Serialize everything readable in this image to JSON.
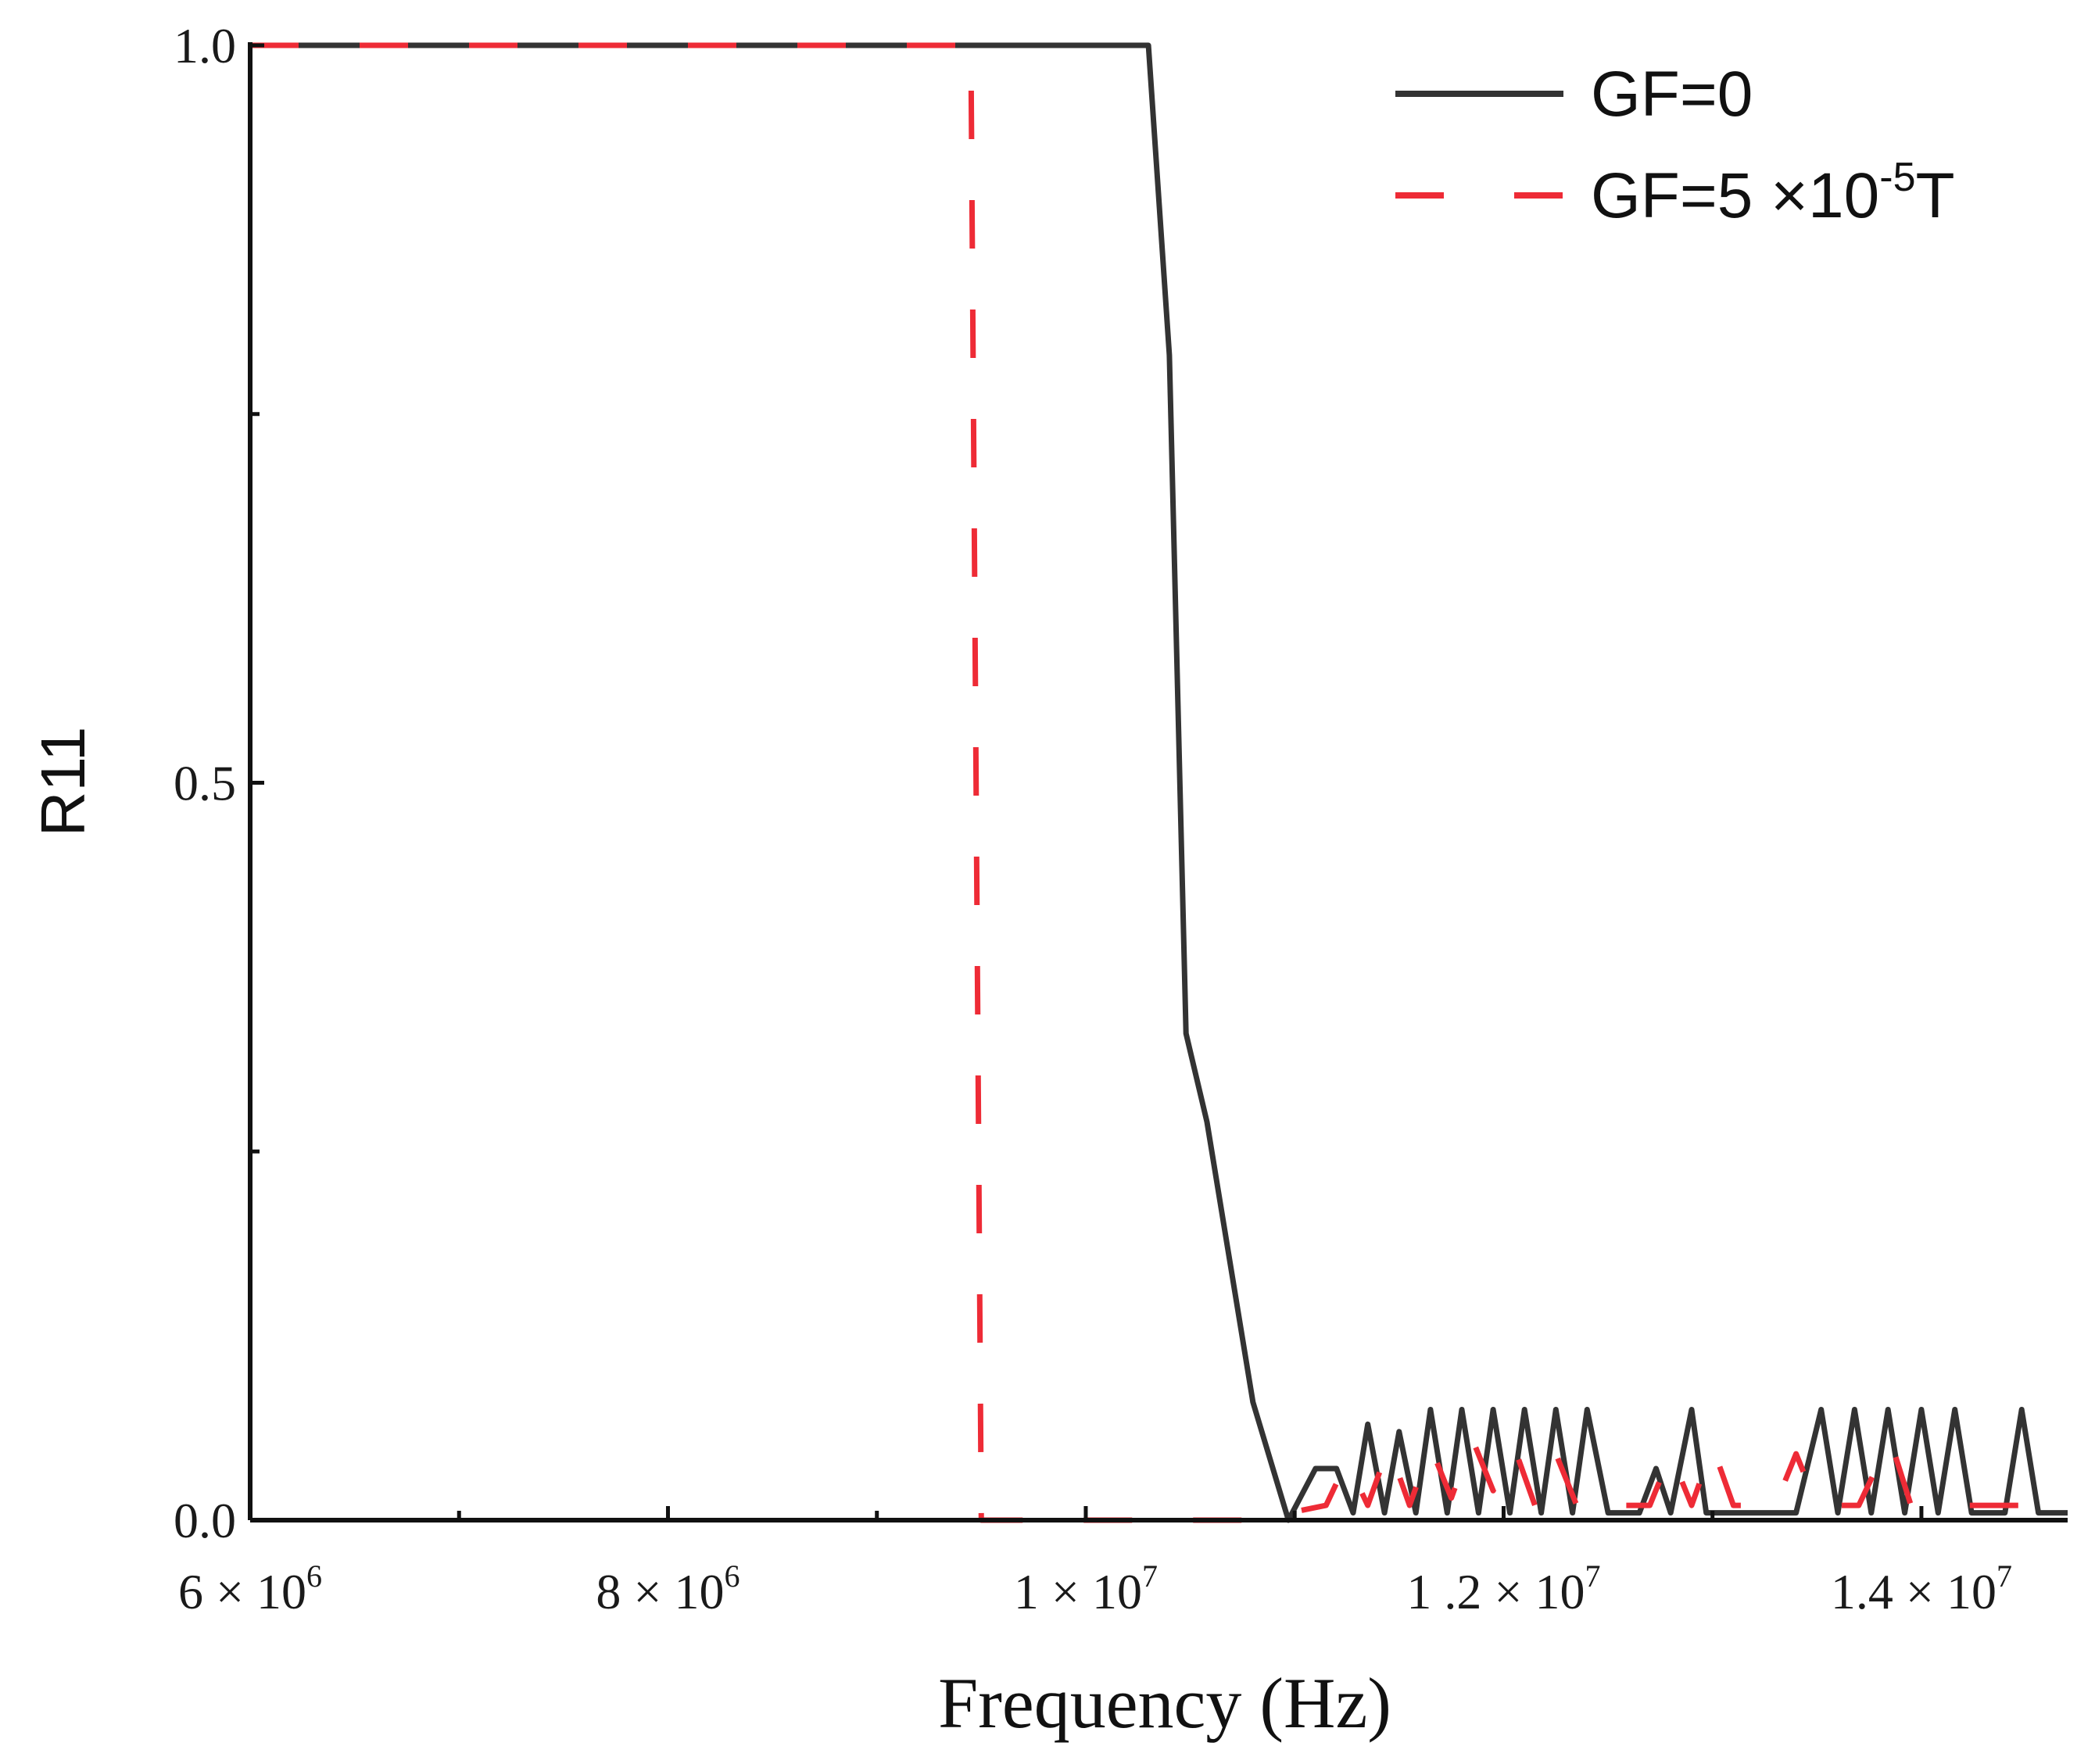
{
  "chart_data": {
    "type": "line",
    "title": "",
    "xlabel": "Frequency (Hz)",
    "ylabel": "R11",
    "xlim": [
      6000000,
      14700000
    ],
    "ylim": [
      0,
      1.0
    ],
    "x_ticks": [
      {
        "value": 6000000,
        "mant": "6",
        "exp": "6"
      },
      {
        "value": 8000000,
        "mant": "8",
        "exp": "6"
      },
      {
        "value": 10000000,
        "mant": "1",
        "exp": "7"
      },
      {
        "value": 12000000,
        "mant": "1 .2",
        "exp": "7"
      },
      {
        "value": 14000000,
        "mant": "1.4",
        "exp": "7"
      }
    ],
    "x_minor_ticks": [
      7000000,
      9000000,
      11000000,
      13000000
    ],
    "y_ticks": [
      {
        "value": 0.0,
        "label": "0.0"
      },
      {
        "value": 0.5,
        "label": "0.5"
      },
      {
        "value": 1.0,
        "label": "1.0"
      }
    ],
    "y_minor_ticks": [
      0.25,
      0.75
    ],
    "legend": {
      "position": "top-right",
      "entries": [
        {
          "label_main": "GF=0",
          "label_sup": "",
          "label_tail": ""
        },
        {
          "label_main": "GF=5 ×10",
          "label_sup": "-5",
          "label_tail": "T"
        }
      ]
    },
    "series": [
      {
        "name": "GF=0",
        "color": "#333333",
        "style": "solid",
        "points": [
          [
            6000000,
            1.0
          ],
          [
            10300000,
            1.0
          ],
          [
            10400000,
            0.79
          ],
          [
            10480000,
            0.33
          ],
          [
            10580000,
            0.27
          ],
          [
            10800000,
            0.08
          ],
          [
            10970000,
            0.0
          ],
          [
            11100000,
            0.035
          ],
          [
            11200000,
            0.035
          ],
          [
            11280000,
            0.005
          ],
          [
            11350000,
            0.065
          ],
          [
            11430000,
            0.005
          ],
          [
            11500000,
            0.06
          ],
          [
            11580000,
            0.005
          ],
          [
            11650000,
            0.075
          ],
          [
            11730000,
            0.005
          ],
          [
            11800000,
            0.075
          ],
          [
            11880000,
            0.005
          ],
          [
            11950000,
            0.075
          ],
          [
            12030000,
            0.005
          ],
          [
            12100000,
            0.075
          ],
          [
            12180000,
            0.005
          ],
          [
            12250000,
            0.075
          ],
          [
            12330000,
            0.005
          ],
          [
            12400000,
            0.075
          ],
          [
            12500000,
            0.005
          ],
          [
            12650000,
            0.005
          ],
          [
            12730000,
            0.035
          ],
          [
            12800000,
            0.005
          ],
          [
            12900000,
            0.075
          ],
          [
            12970000,
            0.005
          ],
          [
            13400000,
            0.005
          ],
          [
            13520000,
            0.075
          ],
          [
            13600000,
            0.005
          ],
          [
            13680000,
            0.075
          ],
          [
            13760000,
            0.005
          ],
          [
            13840000,
            0.075
          ],
          [
            13920000,
            0.005
          ],
          [
            14000000,
            0.075
          ],
          [
            14080000,
            0.005
          ],
          [
            14160000,
            0.075
          ],
          [
            14240000,
            0.005
          ],
          [
            14400000,
            0.005
          ],
          [
            14480000,
            0.075
          ],
          [
            14560000,
            0.005
          ],
          [
            14700000,
            0.005
          ]
        ]
      },
      {
        "name": "GF=5 ×10-5T",
        "color": "#ee2b36",
        "style": "dashed",
        "points": [
          [
            6000000,
            1.0
          ],
          [
            9450000,
            1.0
          ],
          [
            9500000,
            0.0
          ],
          [
            10800000,
            0.0
          ],
          [
            11150000,
            0.01
          ],
          [
            11250000,
            0.04
          ],
          [
            11350000,
            0.01
          ],
          [
            11450000,
            0.05
          ],
          [
            11550000,
            0.01
          ],
          [
            11650000,
            0.05
          ],
          [
            11750000,
            0.015
          ],
          [
            11850000,
            0.055
          ],
          [
            11950000,
            0.02
          ],
          [
            12050000,
            0.05
          ],
          [
            12150000,
            0.01
          ],
          [
            12250000,
            0.045
          ],
          [
            12350000,
            0.01
          ],
          [
            12450000,
            0.02
          ],
          [
            12550000,
            0.01
          ],
          [
            12700000,
            0.01
          ],
          [
            12800000,
            0.045
          ],
          [
            12900000,
            0.01
          ],
          [
            13000000,
            0.05
          ],
          [
            13100000,
            0.01
          ],
          [
            13300000,
            0.01
          ],
          [
            13400000,
            0.045
          ],
          [
            13500000,
            0.01
          ],
          [
            13700000,
            0.01
          ],
          [
            13850000,
            0.055
          ],
          [
            13950000,
            0.01
          ],
          [
            14050000,
            0.01
          ],
          [
            14300000,
            0.01
          ],
          [
            14700000,
            0.01
          ]
        ]
      }
    ]
  }
}
